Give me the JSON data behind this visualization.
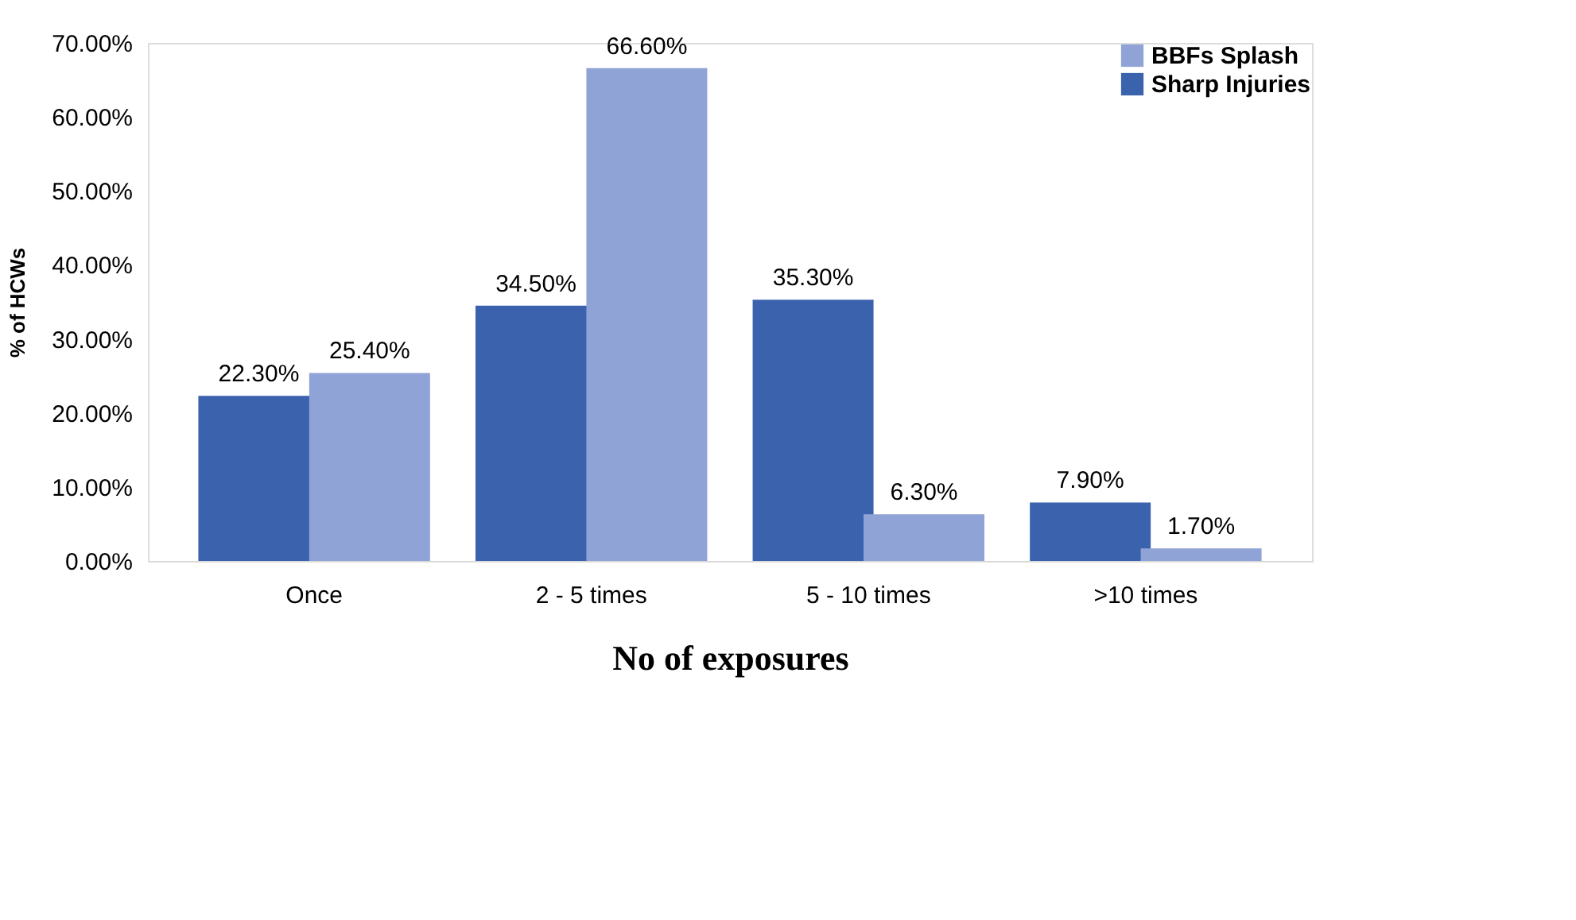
{
  "chart_data": {
    "type": "bar",
    "xlabel": "No of exposures",
    "ylabel": "% of HCWs",
    "categories": [
      "Once",
      "2 - 5 times",
      "5 - 10 times",
      ">10 times"
    ],
    "series": [
      {
        "name": "Sharp Injuries",
        "color": "#3a62ad",
        "values": [
          22.3,
          34.5,
          35.3,
          7.9
        ],
        "value_labels": [
          "22.30%",
          "34.50%",
          "35.30%",
          "7.90%"
        ]
      },
      {
        "name": "BBFs Splash",
        "color": "#8fa3d6",
        "values": [
          25.4,
          66.6,
          6.3,
          1.7
        ],
        "value_labels": [
          "25.40%",
          "66.60%",
          "6.30%",
          "1.70%"
        ]
      }
    ],
    "ylim": [
      0,
      70
    ],
    "yticks": [
      {
        "value": 0,
        "label": "0.00%"
      },
      {
        "value": 10,
        "label": "10.00%"
      },
      {
        "value": 20,
        "label": "20.00%"
      },
      {
        "value": 30,
        "label": "30.00%"
      },
      {
        "value": 40,
        "label": "40.00%"
      },
      {
        "value": 50,
        "label": "50.00%"
      },
      {
        "value": 60,
        "label": "60.00%"
      },
      {
        "value": 70,
        "label": "70.00%"
      }
    ],
    "grid": false,
    "legend": "top right"
  }
}
